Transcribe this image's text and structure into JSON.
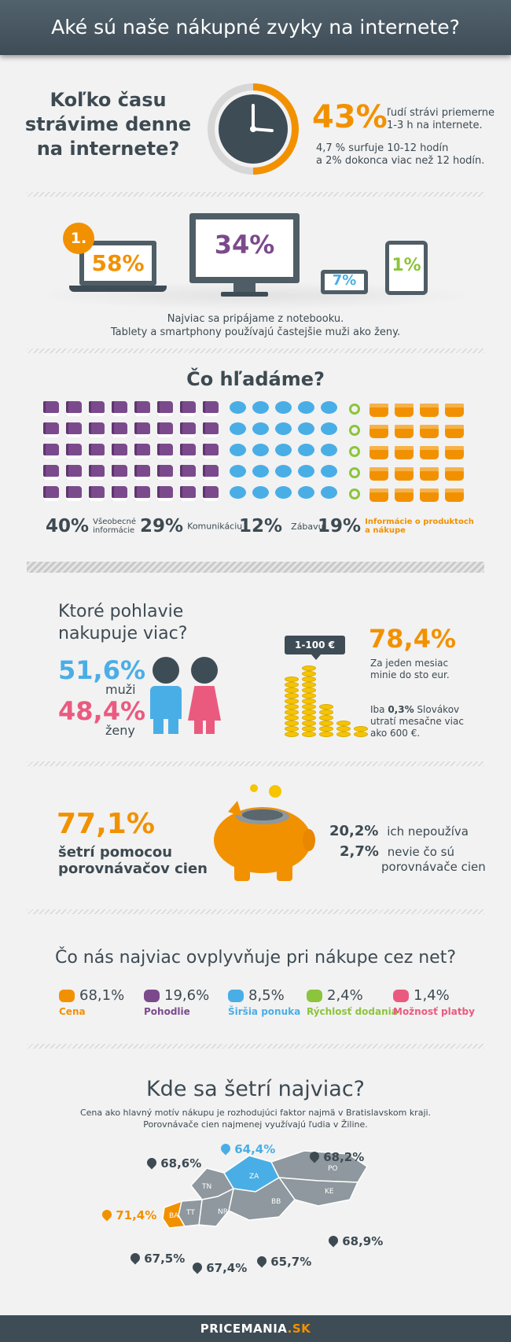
{
  "header": {
    "title": "Aké sú naše nákupné zvyky na internete?"
  },
  "time": {
    "question_lines": [
      "Koľko času",
      "strávime denne",
      "na internete?"
    ],
    "big_percent": "43%",
    "big_text_lines": [
      "ľudí strávi priemerne",
      "1-3 h na internete."
    ],
    "detail_lines": [
      "4,7 % surfuje 10-12 hodín",
      "a 2% dokonca viac než 12 hodín."
    ]
  },
  "devices": {
    "rank": "1.",
    "laptop": "58%",
    "desktop": "34%",
    "tablet": "7%",
    "phone": "1%",
    "caption_lines": [
      "Najviac sa pripájame z notebooku.",
      "Tablety a smartphony používajú častejšie muži ako ženy."
    ]
  },
  "search": {
    "title": "Čo hľadáme?",
    "items": [
      {
        "percent": "40%",
        "label_lines": [
          "Všeobecné",
          "informácie"
        ]
      },
      {
        "percent": "29%",
        "label_lines": [
          "Komunikáciu"
        ]
      },
      {
        "percent": "12%",
        "label_lines": [
          "Zábavu"
        ]
      },
      {
        "percent": "19%",
        "label_lines": [
          "Informácie o produktoch",
          "a nákupe"
        ]
      }
    ]
  },
  "gender": {
    "question_lines": [
      "Ktoré pohlavie",
      "nakupuje viac?"
    ],
    "men_percent": "51,6%",
    "men_label": "muži",
    "women_percent": "48,4%",
    "women_label": "ženy",
    "badge": "1-100 €",
    "spend_percent": "78,4%",
    "spend_lines": [
      "Za jeden mesiac",
      "minie do sto eur."
    ],
    "rare_prefix": "Iba ",
    "rare_bold": "0,3%",
    "rare_suffix": " Slovákov",
    "rare_lines": [
      "utratí mesačne viac",
      "ako 600 €."
    ]
  },
  "savings": {
    "percent": "77,1%",
    "lines": [
      "šetrí pomocou",
      "porovnávačov cien"
    ],
    "stat1_percent": "20,2%",
    "stat1_text": "ich nepoužíva",
    "stat2_percent": "2,7%",
    "stat2_lines": [
      "nevie čo sú",
      "porovnávače cien"
    ]
  },
  "influence": {
    "title": "Čo nás najviac ovplyvňuje pri nákupe cez net?",
    "items": [
      {
        "icon": "piggy-icon",
        "percent": "68,1%",
        "label": "Cena",
        "color": "#f29100"
      },
      {
        "icon": "armchair-icon",
        "percent": "19,6%",
        "label": "Pohodlie",
        "color": "#7b4a8c"
      },
      {
        "icon": "badge-icon",
        "percent": "8,5%",
        "label": "Širšia ponuka",
        "color": "#4aaee6"
      },
      {
        "icon": "speedometer-icon",
        "percent": "2,4%",
        "label": "Rýchlosť dodania",
        "color": "#8cc43c"
      },
      {
        "icon": "shop-icon",
        "percent": "1,4%",
        "label": "Možnosť platby",
        "color": "#ea5a7f"
      }
    ]
  },
  "map": {
    "title": "Kde sa šetrí najviac?",
    "subtitle_lines": [
      "Cena ako hlavný motív nákupu je rozhodujúci faktor najmä v Bratislavskom kraji.",
      "Porovnávače cien najmenej využívajú ľudia v Žiline."
    ],
    "regions": [
      {
        "code": "BA",
        "value": "71,4%"
      },
      {
        "code": "TT",
        "value": "67,5%"
      },
      {
        "code": "NR",
        "value": "67,4%"
      },
      {
        "code": "TN",
        "value": "68,6%"
      },
      {
        "code": "ZA",
        "value": "64,4%"
      },
      {
        "code": "BB",
        "value": "65,7%"
      },
      {
        "code": "PO",
        "value": "68,2%"
      },
      {
        "code": "KE",
        "value": "68,9%"
      }
    ],
    "colors": {
      "highlight_max": "#f29100",
      "highlight_min": "#4aaee6",
      "default": "#8e989e"
    }
  },
  "footer": {
    "brand_main": "PRICEMANIA",
    "brand_tld": ".SK"
  }
}
